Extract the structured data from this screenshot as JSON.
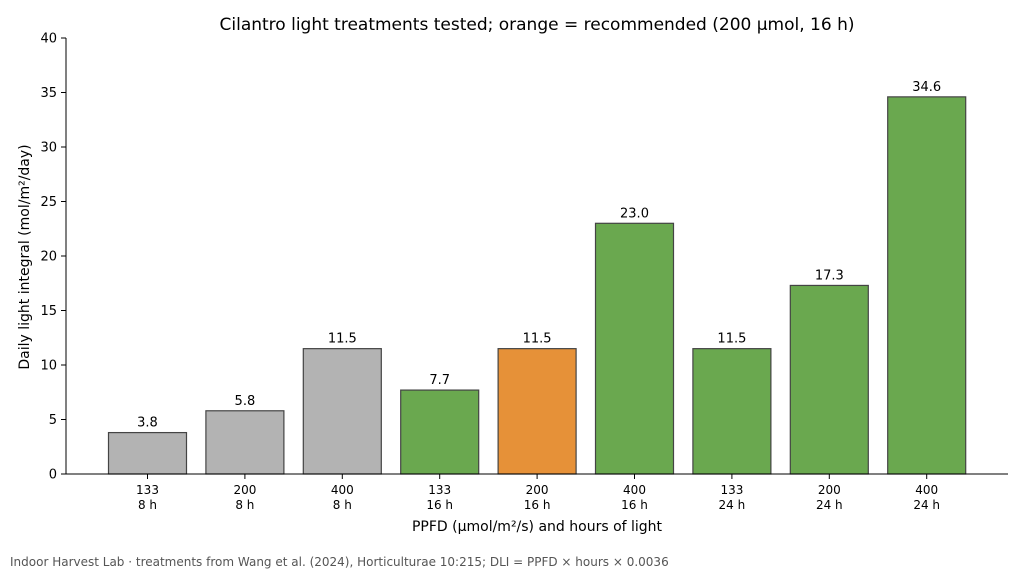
{
  "chart_data": {
    "type": "bar",
    "title": "Cilantro light treatments tested; orange = recommended (200 µmol, 16 h)",
    "xlabel": "PPFD (µmol/m²/s) and hours of light",
    "ylabel": "Daily light integral (mol/m²/day)",
    "ylim": [
      0,
      40
    ],
    "yticks": [
      "0",
      "5",
      "10",
      "15",
      "20",
      "25",
      "30",
      "35",
      "40"
    ],
    "grid": false,
    "categories": [
      {
        "ppfd": "133",
        "hours": "8 h"
      },
      {
        "ppfd": "200",
        "hours": "8 h"
      },
      {
        "ppfd": "400",
        "hours": "8 h"
      },
      {
        "ppfd": "133",
        "hours": "16 h"
      },
      {
        "ppfd": "200",
        "hours": "16 h"
      },
      {
        "ppfd": "400",
        "hours": "16 h"
      },
      {
        "ppfd": "133",
        "hours": "24 h"
      },
      {
        "ppfd": "200",
        "hours": "24 h"
      },
      {
        "ppfd": "400",
        "hours": "24 h"
      }
    ],
    "values": [
      3.8,
      5.8,
      11.5,
      7.7,
      11.5,
      23.0,
      11.5,
      17.3,
      34.6
    ],
    "value_labels": [
      "3.8",
      "5.8",
      "11.5",
      "7.7",
      "11.5",
      "23.0",
      "11.5",
      "17.3",
      "34.6"
    ],
    "bar_colors": [
      "#b3b3b3",
      "#b3b3b3",
      "#b3b3b3",
      "#6aa84f",
      "#e69138",
      "#6aa84f",
      "#6aa84f",
      "#6aa84f",
      "#6aa84f"
    ],
    "edge_color": "#444444"
  },
  "footer": "Indoor Harvest Lab · treatments from Wang et al. (2024), Horticulturae 10:215; DLI = PPFD × hours × 0.0036"
}
